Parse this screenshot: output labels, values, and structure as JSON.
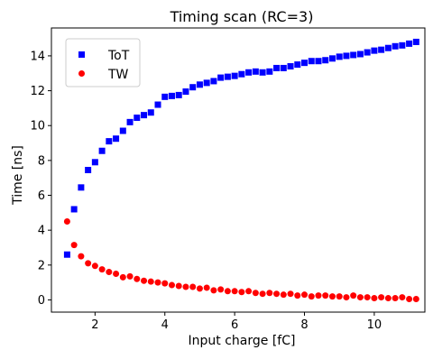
{
  "chart_data": {
    "type": "scatter",
    "title": "Timing scan (RC=3)",
    "xlabel": "Input charge [fC]",
    "ylabel": "Time [ns]",
    "xlim": [
      0.75,
      11.45
    ],
    "ylim": [
      -0.7,
      15.6
    ],
    "xticks": [
      2,
      4,
      6,
      8,
      10
    ],
    "yticks": [
      0,
      2,
      4,
      6,
      8,
      10,
      12,
      14
    ],
    "grid": false,
    "legend_position": "top-left",
    "series": [
      {
        "name": "ToT",
        "marker": "square",
        "color": "#0000ff",
        "x": [
          1.2,
          1.4,
          1.6,
          1.8,
          2.0,
          2.2,
          2.4,
          2.6,
          2.8,
          3.0,
          3.2,
          3.4,
          3.6,
          3.8,
          4.0,
          4.2,
          4.4,
          4.6,
          4.8,
          5.0,
          5.2,
          5.4,
          5.6,
          5.8,
          6.0,
          6.2,
          6.4,
          6.6,
          6.8,
          7.0,
          7.2,
          7.4,
          7.6,
          7.8,
          8.0,
          8.2,
          8.4,
          8.6,
          8.8,
          9.0,
          9.2,
          9.4,
          9.6,
          9.8,
          10.0,
          10.2,
          10.4,
          10.6,
          10.8,
          11.0,
          11.2
        ],
        "y": [
          2.6,
          5.2,
          6.45,
          7.45,
          7.9,
          8.55,
          9.1,
          9.25,
          9.7,
          10.2,
          10.45,
          10.6,
          10.75,
          11.2,
          11.65,
          11.7,
          11.75,
          11.95,
          12.2,
          12.35,
          12.45,
          12.55,
          12.75,
          12.8,
          12.85,
          12.95,
          13.05,
          13.1,
          13.05,
          13.1,
          13.3,
          13.3,
          13.4,
          13.5,
          13.6,
          13.7,
          13.7,
          13.75,
          13.85,
          13.95,
          14.0,
          14.05,
          14.1,
          14.2,
          14.3,
          14.35,
          14.45,
          14.55,
          14.6,
          14.7,
          14.8
        ]
      },
      {
        "name": "TW",
        "marker": "circle",
        "color": "#ff0000",
        "x": [
          1.2,
          1.4,
          1.6,
          1.8,
          2.0,
          2.2,
          2.4,
          2.6,
          2.8,
          3.0,
          3.2,
          3.4,
          3.6,
          3.8,
          4.0,
          4.2,
          4.4,
          4.6,
          4.8,
          5.0,
          5.2,
          5.4,
          5.6,
          5.8,
          6.0,
          6.2,
          6.4,
          6.6,
          6.8,
          7.0,
          7.2,
          7.4,
          7.6,
          7.8,
          8.0,
          8.2,
          8.4,
          8.6,
          8.8,
          9.0,
          9.2,
          9.4,
          9.6,
          9.8,
          10.0,
          10.2,
          10.4,
          10.6,
          10.8,
          11.0,
          11.2
        ],
        "y": [
          4.5,
          3.15,
          2.5,
          2.1,
          1.95,
          1.75,
          1.6,
          1.5,
          1.3,
          1.35,
          1.2,
          1.1,
          1.05,
          1.0,
          0.95,
          0.85,
          0.8,
          0.75,
          0.75,
          0.65,
          0.7,
          0.55,
          0.6,
          0.5,
          0.5,
          0.45,
          0.5,
          0.4,
          0.35,
          0.4,
          0.35,
          0.3,
          0.35,
          0.25,
          0.3,
          0.2,
          0.25,
          0.25,
          0.2,
          0.2,
          0.15,
          0.25,
          0.15,
          0.15,
          0.1,
          0.15,
          0.1,
          0.1,
          0.15,
          0.05,
          0.05
        ]
      }
    ]
  }
}
